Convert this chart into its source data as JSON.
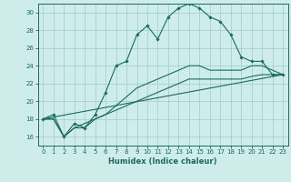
{
  "xlabel": "Humidex (Indice chaleur)",
  "bg_color": "#ceecea",
  "grid_color": "#a0ccc8",
  "line_color": "#1a6b5a",
  "xlim": [
    -0.5,
    23.5
  ],
  "ylim": [
    15.0,
    31.0
  ],
  "yticks": [
    16,
    18,
    20,
    22,
    24,
    26,
    28,
    30
  ],
  "xticks": [
    0,
    1,
    2,
    3,
    4,
    5,
    6,
    7,
    8,
    9,
    10,
    11,
    12,
    13,
    14,
    15,
    16,
    17,
    18,
    19,
    20,
    21,
    22,
    23
  ],
  "series1": {
    "x": [
      0,
      1,
      2,
      3,
      4,
      5,
      6,
      7,
      8,
      9,
      10,
      11,
      12,
      13,
      14,
      15,
      16,
      17,
      18,
      19,
      20,
      21,
      22,
      23
    ],
    "y": [
      18.0,
      18.5,
      16.0,
      17.5,
      17.0,
      18.5,
      21.0,
      24.0,
      24.5,
      27.5,
      28.5,
      27.0,
      29.5,
      30.5,
      31.0,
      30.5,
      29.5,
      29.0,
      27.5,
      25.0,
      24.5,
      24.5,
      23.0,
      23.0
    ]
  },
  "series2": {
    "x": [
      0,
      1,
      2,
      3,
      4,
      5,
      6,
      7,
      8,
      9,
      10,
      11,
      12,
      13,
      14,
      15,
      16,
      17,
      18,
      19,
      20,
      21,
      22,
      23
    ],
    "y": [
      18.0,
      18.0,
      16.0,
      17.0,
      17.0,
      18.0,
      18.5,
      19.0,
      19.5,
      20.0,
      20.5,
      21.0,
      21.5,
      22.0,
      22.5,
      22.5,
      22.5,
      22.5,
      22.5,
      22.5,
      22.8,
      23.0,
      23.0,
      23.0
    ]
  },
  "series3": {
    "x": [
      0,
      1,
      2,
      3,
      4,
      5,
      6,
      7,
      8,
      9,
      10,
      11,
      12,
      13,
      14,
      15,
      16,
      17,
      18,
      19,
      20,
      21,
      22,
      23
    ],
    "y": [
      18.0,
      18.0,
      16.0,
      17.0,
      17.5,
      18.0,
      18.5,
      19.5,
      20.5,
      21.5,
      22.0,
      22.5,
      23.0,
      23.5,
      24.0,
      24.0,
      23.5,
      23.5,
      23.5,
      23.5,
      24.0,
      24.0,
      23.5,
      23.0
    ]
  },
  "series4": {
    "x": [
      0,
      23
    ],
    "y": [
      18.0,
      23.0
    ]
  }
}
